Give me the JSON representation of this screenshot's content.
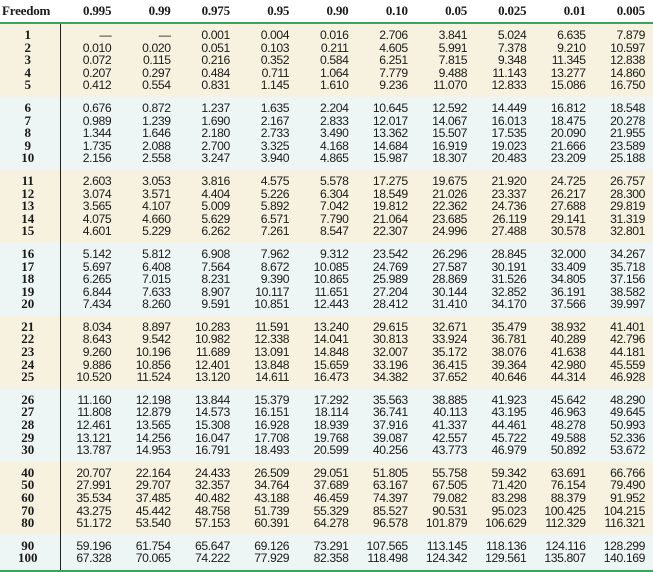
{
  "header": {
    "df_label": "Freedom",
    "columns": [
      "0.995",
      "0.99",
      "0.975",
      "0.95",
      "0.90",
      "0.10",
      "0.05",
      "0.025",
      "0.01",
      "0.005"
    ]
  },
  "groups": [
    {
      "shade": "tan",
      "rows": [
        {
          "df": "1",
          "values": [
            "—",
            "—",
            "0.001",
            "0.004",
            "0.016",
            "2.706",
            "3.841",
            "5.024",
            "6.635",
            "7.879"
          ]
        },
        {
          "df": "2",
          "values": [
            "0.010",
            "0.020",
            "0.051",
            "0.103",
            "0.211",
            "4.605",
            "5.991",
            "7.378",
            "9.210",
            "10.597"
          ]
        },
        {
          "df": "3",
          "values": [
            "0.072",
            "0.115",
            "0.216",
            "0.352",
            "0.584",
            "6.251",
            "7.815",
            "9.348",
            "11.345",
            "12.838"
          ]
        },
        {
          "df": "4",
          "values": [
            "0.207",
            "0.297",
            "0.484",
            "0.711",
            "1.064",
            "7.779",
            "9.488",
            "11.143",
            "13.277",
            "14.860"
          ]
        },
        {
          "df": "5",
          "values": [
            "0.412",
            "0.554",
            "0.831",
            "1.145",
            "1.610",
            "9.236",
            "11.070",
            "12.833",
            "15.086",
            "16.750"
          ]
        }
      ]
    },
    {
      "shade": "blue",
      "rows": [
        {
          "df": "6",
          "values": [
            "0.676",
            "0.872",
            "1.237",
            "1.635",
            "2.204",
            "10.645",
            "12.592",
            "14.449",
            "16.812",
            "18.548"
          ]
        },
        {
          "df": "7",
          "values": [
            "0.989",
            "1.239",
            "1.690",
            "2.167",
            "2.833",
            "12.017",
            "14.067",
            "16.013",
            "18.475",
            "20.278"
          ]
        },
        {
          "df": "8",
          "values": [
            "1.344",
            "1.646",
            "2.180",
            "2.733",
            "3.490",
            "13.362",
            "15.507",
            "17.535",
            "20.090",
            "21.955"
          ]
        },
        {
          "df": "9",
          "values": [
            "1.735",
            "2.088",
            "2.700",
            "3.325",
            "4.168",
            "14.684",
            "16.919",
            "19.023",
            "21.666",
            "23.589"
          ]
        },
        {
          "df": "10",
          "values": [
            "2.156",
            "2.558",
            "3.247",
            "3.940",
            "4.865",
            "15.987",
            "18.307",
            "20.483",
            "23.209",
            "25.188"
          ]
        }
      ]
    },
    {
      "shade": "tan",
      "rows": [
        {
          "df": "11",
          "values": [
            "2.603",
            "3.053",
            "3.816",
            "4.575",
            "5.578",
            "17.275",
            "19.675",
            "21.920",
            "24.725",
            "26.757"
          ]
        },
        {
          "df": "12",
          "values": [
            "3.074",
            "3.571",
            "4.404",
            "5.226",
            "6.304",
            "18.549",
            "21.026",
            "23.337",
            "26.217",
            "28.300"
          ]
        },
        {
          "df": "13",
          "values": [
            "3.565",
            "4.107",
            "5.009",
            "5.892",
            "7.042",
            "19.812",
            "22.362",
            "24.736",
            "27.688",
            "29.819"
          ]
        },
        {
          "df": "14",
          "values": [
            "4.075",
            "4.660",
            "5.629",
            "6.571",
            "7.790",
            "21.064",
            "23.685",
            "26.119",
            "29.141",
            "31.319"
          ]
        },
        {
          "df": "15",
          "values": [
            "4.601",
            "5.229",
            "6.262",
            "7.261",
            "8.547",
            "22.307",
            "24.996",
            "27.488",
            "30.578",
            "32.801"
          ]
        }
      ]
    },
    {
      "shade": "blue",
      "rows": [
        {
          "df": "16",
          "values": [
            "5.142",
            "5.812",
            "6.908",
            "7.962",
            "9.312",
            "23.542",
            "26.296",
            "28.845",
            "32.000",
            "34.267"
          ]
        },
        {
          "df": "17",
          "values": [
            "5.697",
            "6.408",
            "7.564",
            "8.672",
            "10.085",
            "24.769",
            "27.587",
            "30.191",
            "33.409",
            "35.718"
          ]
        },
        {
          "df": "18",
          "values": [
            "6.265",
            "7.015",
            "8.231",
            "9.390",
            "10.865",
            "25.989",
            "28.869",
            "31.526",
            "34.805",
            "37.156"
          ]
        },
        {
          "df": "19",
          "values": [
            "6.844",
            "7.633",
            "8.907",
            "10.117",
            "11.651",
            "27.204",
            "30.144",
            "32.852",
            "36.191",
            "38.582"
          ]
        },
        {
          "df": "20",
          "values": [
            "7.434",
            "8.260",
            "9.591",
            "10.851",
            "12.443",
            "28.412",
            "31.410",
            "34.170",
            "37.566",
            "39.997"
          ]
        }
      ]
    },
    {
      "shade": "tan",
      "rows": [
        {
          "df": "21",
          "values": [
            "8.034",
            "8.897",
            "10.283",
            "11.591",
            "13.240",
            "29.615",
            "32.671",
            "35.479",
            "38.932",
            "41.401"
          ]
        },
        {
          "df": "22",
          "values": [
            "8.643",
            "9.542",
            "10.982",
            "12.338",
            "14.041",
            "30.813",
            "33.924",
            "36.781",
            "40.289",
            "42.796"
          ]
        },
        {
          "df": "23",
          "values": [
            "9.260",
            "10.196",
            "11.689",
            "13.091",
            "14.848",
            "32.007",
            "35.172",
            "38.076",
            "41.638",
            "44.181"
          ]
        },
        {
          "df": "24",
          "values": [
            "9.886",
            "10.856",
            "12.401",
            "13.848",
            "15.659",
            "33.196",
            "36.415",
            "39.364",
            "42.980",
            "45.559"
          ]
        },
        {
          "df": "25",
          "values": [
            "10.520",
            "11.524",
            "13.120",
            "14.611",
            "16.473",
            "34.382",
            "37.652",
            "40.646",
            "44.314",
            "46.928"
          ]
        }
      ]
    },
    {
      "shade": "blue",
      "rows": [
        {
          "df": "26",
          "values": [
            "11.160",
            "12.198",
            "13.844",
            "15.379",
            "17.292",
            "35.563",
            "38.885",
            "41.923",
            "45.642",
            "48.290"
          ]
        },
        {
          "df": "27",
          "values": [
            "11.808",
            "12.879",
            "14.573",
            "16.151",
            "18.114",
            "36.741",
            "40.113",
            "43.195",
            "46.963",
            "49.645"
          ]
        },
        {
          "df": "28",
          "values": [
            "12.461",
            "13.565",
            "15.308",
            "16.928",
            "18.939",
            "37.916",
            "41.337",
            "44.461",
            "48.278",
            "50.993"
          ]
        },
        {
          "df": "29",
          "values": [
            "13.121",
            "14.256",
            "16.047",
            "17.708",
            "19.768",
            "39.087",
            "42.557",
            "45.722",
            "49.588",
            "52.336"
          ]
        },
        {
          "df": "30",
          "values": [
            "13.787",
            "14.953",
            "16.791",
            "18.493",
            "20.599",
            "40.256",
            "43.773",
            "46.979",
            "50.892",
            "53.672"
          ]
        }
      ]
    },
    {
      "shade": "tan",
      "rows": [
        {
          "df": "40",
          "values": [
            "20.707",
            "22.164",
            "24.433",
            "26.509",
            "29.051",
            "51.805",
            "55.758",
            "59.342",
            "63.691",
            "66.766"
          ]
        },
        {
          "df": "50",
          "values": [
            "27.991",
            "29.707",
            "32.357",
            "34.764",
            "37.689",
            "63.167",
            "67.505",
            "71.420",
            "76.154",
            "79.490"
          ]
        },
        {
          "df": "60",
          "values": [
            "35.534",
            "37.485",
            "40.482",
            "43.188",
            "46.459",
            "74.397",
            "79.082",
            "83.298",
            "88.379",
            "91.952"
          ]
        },
        {
          "df": "70",
          "values": [
            "43.275",
            "45.442",
            "48.758",
            "51.739",
            "55.329",
            "85.527",
            "90.531",
            "95.023",
            "100.425",
            "104.215"
          ]
        },
        {
          "df": "80",
          "values": [
            "51.172",
            "53.540",
            "57.153",
            "60.391",
            "64.278",
            "96.578",
            "101.879",
            "106.629",
            "112.329",
            "116.321"
          ]
        }
      ]
    },
    {
      "shade": "blue",
      "rows": [
        {
          "df": "90",
          "values": [
            "59.196",
            "61.754",
            "65.647",
            "69.126",
            "73.291",
            "107.565",
            "113.145",
            "118.136",
            "124.116",
            "128.299"
          ]
        },
        {
          "df": "100",
          "values": [
            "67.328",
            "70.065",
            "74.222",
            "77.929",
            "82.358",
            "118.498",
            "124.342",
            "129.561",
            "135.807",
            "140.169"
          ]
        }
      ]
    }
  ],
  "colors": {
    "rule_green": "#3aa55a",
    "band_tan": "#f6f2df",
    "band_blue": "#eef6f5"
  }
}
